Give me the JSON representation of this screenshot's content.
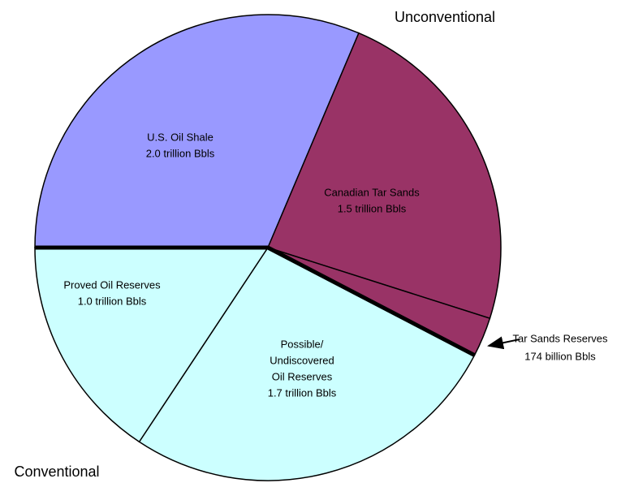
{
  "chart_data": {
    "type": "pie",
    "categories": [
      [
        "U.S. Oil Shale"
      ],
      [
        "Canadian Tar Sands"
      ],
      [
        "Tar Sands Reserves"
      ],
      [
        "Possible/",
        "Undiscovered",
        "Oil Reserves"
      ],
      [
        "Proved Oil Reserves"
      ]
    ],
    "values": [
      2000,
      1500,
      174,
      1700,
      1000
    ],
    "value_labels": [
      "2.0 trillion Bbls",
      "1.5 trillion Bbls",
      "174 billion Bbls",
      "1.7 trillion Bbls",
      "1.0 trillion Bbls"
    ],
    "colors": [
      "#9999ff",
      "#993366",
      "#993366",
      "#ccffff",
      "#ccffff"
    ],
    "annotations": [
      "Unconventional",
      "Conventional"
    ]
  }
}
